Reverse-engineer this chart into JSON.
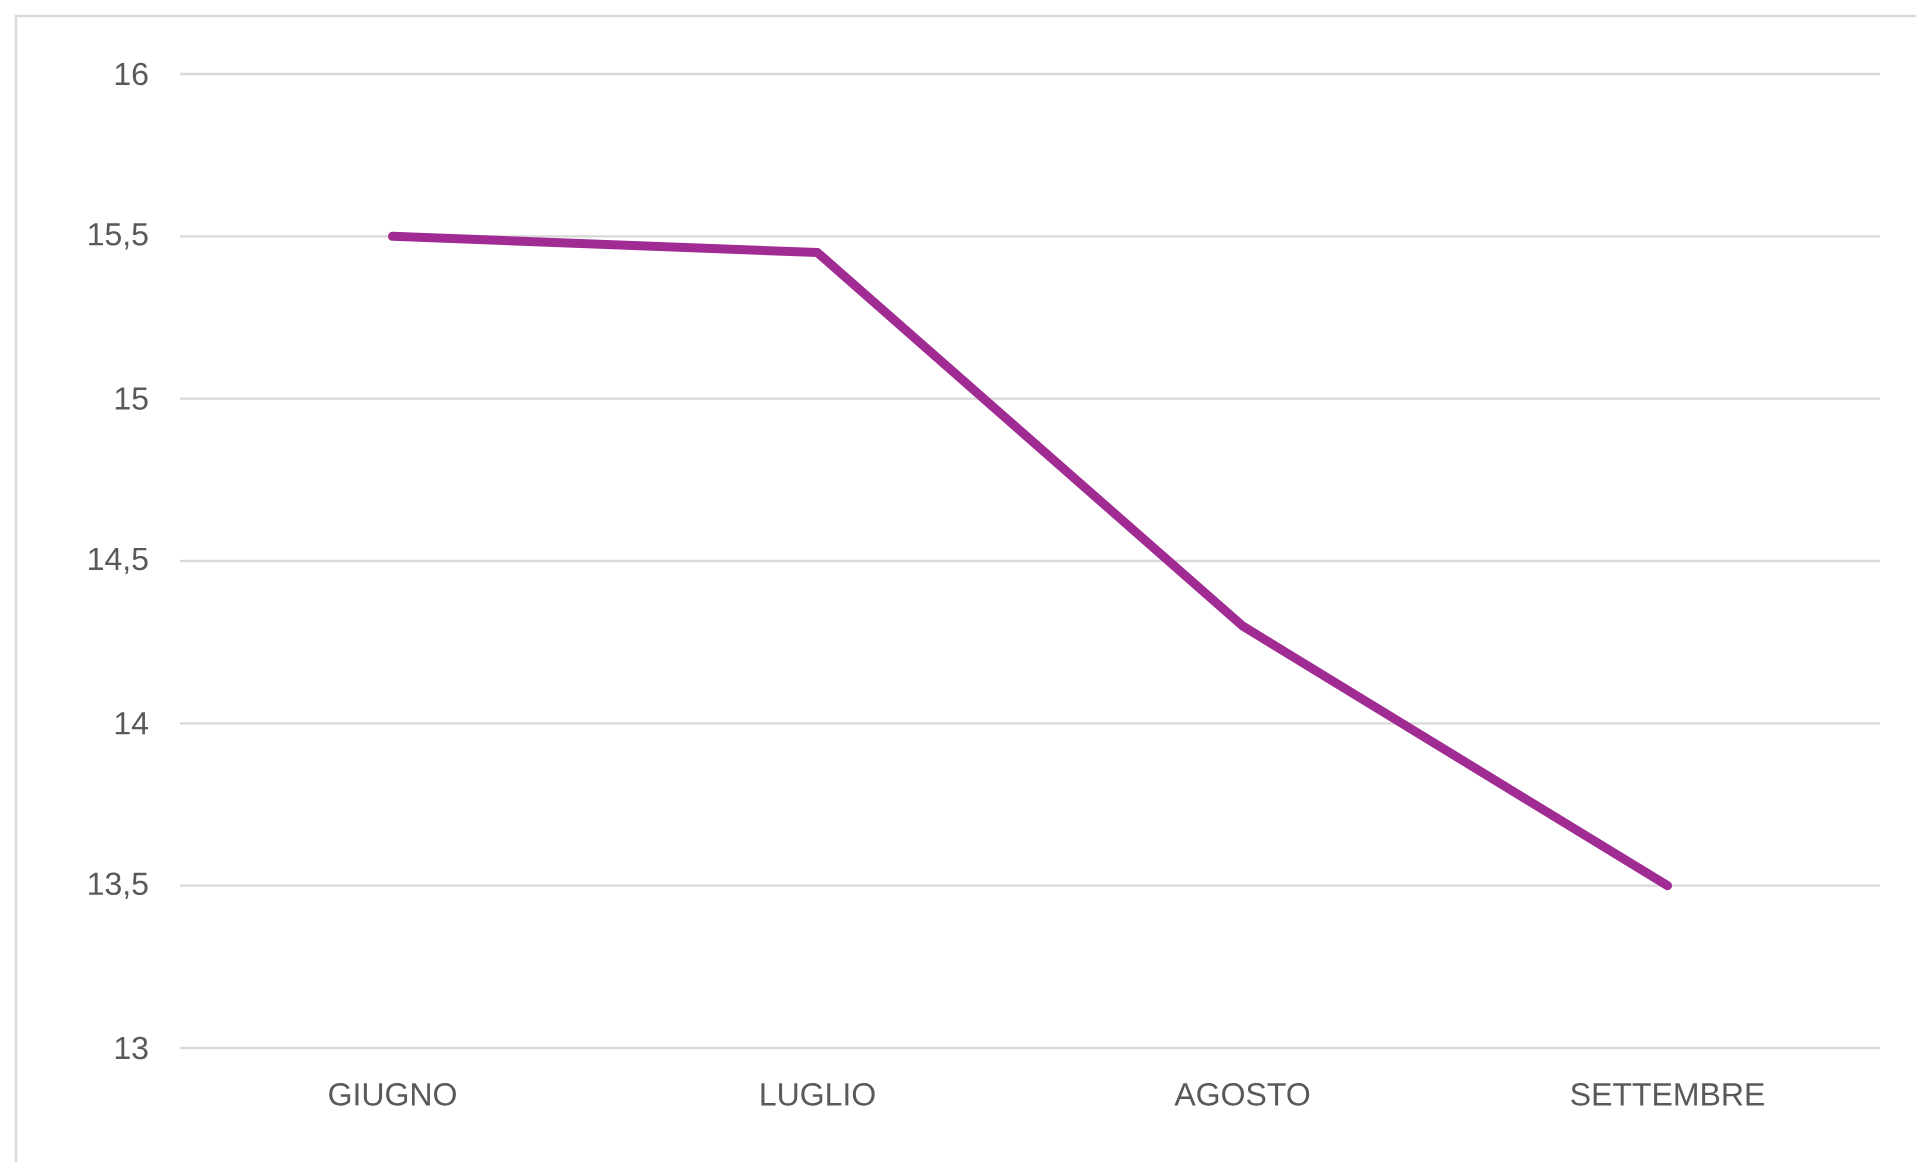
{
  "chart_data": {
    "type": "line",
    "categories": [
      "GIUGNO",
      "LUGLIO",
      "AGOSTO",
      "SETTEMBRE"
    ],
    "values": [
      15.5,
      15.45,
      14.3,
      13.5
    ],
    "color": "#a02b93",
    "ylim": [
      13,
      16
    ],
    "yticks": [
      13,
      {
        "value": 13.5,
        "label": "13,5"
      },
      14,
      {
        "value": 14.5,
        "label": "14,5"
      },
      15,
      {
        "value": 15.5,
        "label": "15,5"
      },
      16
    ],
    "grid": "y"
  }
}
